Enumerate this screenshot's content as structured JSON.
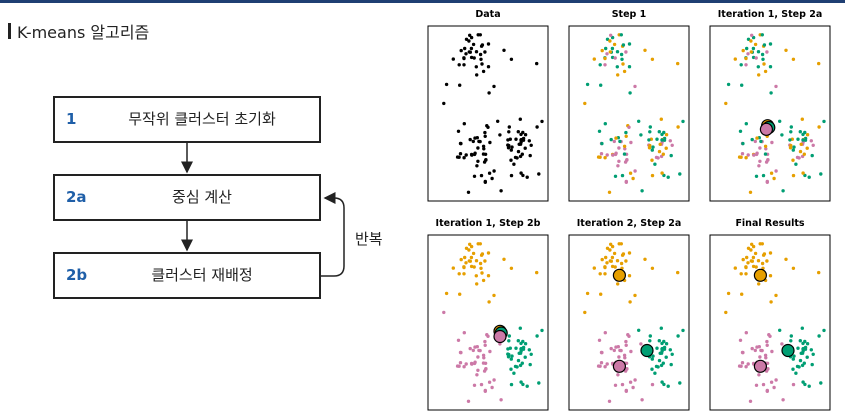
{
  "title": "K-means 알고리즘",
  "steps": [
    {
      "num": "1",
      "label": "무작위 클러스터 초기화"
    },
    {
      "num": "2a",
      "label": "중심 계산"
    },
    {
      "num": "2b",
      "label": "클러스터 재배정"
    }
  ],
  "repeat_label": "반복",
  "panels": [
    {
      "title": "Data"
    },
    {
      "title": "Step 1"
    },
    {
      "title": "Iteration 1, Step 2a"
    },
    {
      "title": "Iteration 1, Step 2b"
    },
    {
      "title": "Iteration 2, Step 2a"
    },
    {
      "title": "Final Results"
    }
  ],
  "colors": {
    "orange": "#e69f00",
    "green": "#009e73",
    "pink": "#cc79a7",
    "black": "#000000",
    "accent": "#1f5fa8"
  }
}
